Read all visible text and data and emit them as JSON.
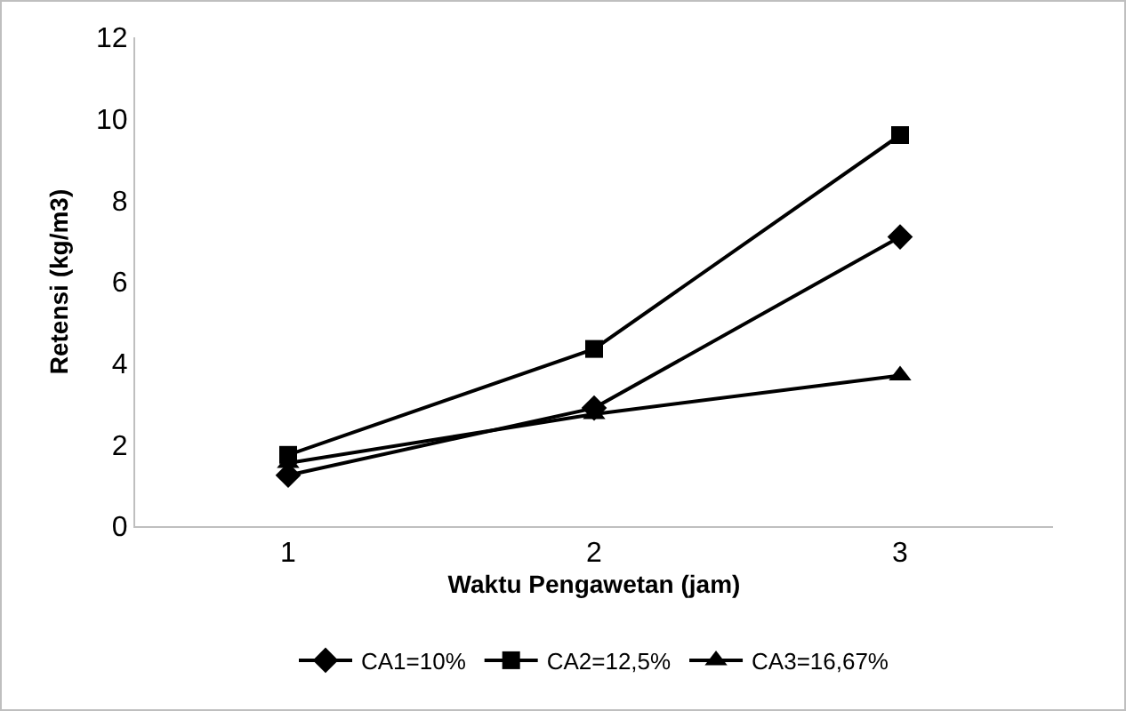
{
  "chart_data": {
    "type": "line",
    "xlabel": "Waktu Pengawetan (jam)",
    "ylabel": "Retensi (kg/m3)",
    "categories": [
      "1",
      "2",
      "3"
    ],
    "series": [
      {
        "name": "CA1=10%",
        "color": "#000000",
        "marker": "diamond",
        "values": [
          1.25,
          2.9,
          7.1
        ]
      },
      {
        "name": "CA2=12,5%",
        "color": "#000000",
        "marker": "square",
        "values": [
          1.75,
          4.35,
          9.6
        ]
      },
      {
        "name": "CA3=16,67%",
        "color": "#000000",
        "marker": "triangle",
        "values": [
          1.55,
          2.75,
          3.7
        ]
      }
    ],
    "ylim": [
      0,
      12
    ],
    "yticks": [
      0,
      2,
      4,
      6,
      8,
      10,
      12
    ],
    "grid": false,
    "legend": "bottom",
    "line_style": "solid"
  }
}
